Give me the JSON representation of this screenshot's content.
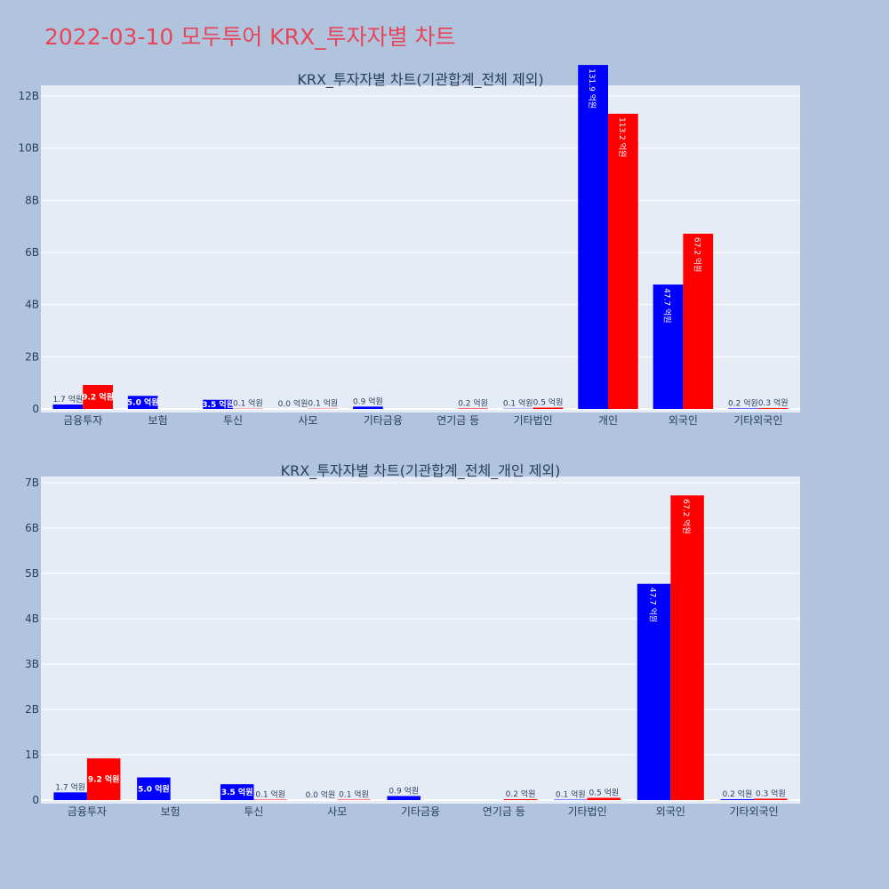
{
  "page_title": "2022-03-10 모두투어 KRX_투자자별 차트",
  "colors": {
    "buy": "#0000ff",
    "sell": "#ff0000",
    "plot_bg": "#e5ecf6",
    "page_bg": "#b0c4de",
    "title": "#e8455a"
  },
  "chart_data": [
    {
      "type": "bar",
      "title": "KRX_투자자별 차트(기관합계_전체 제외)",
      "categories": [
        "금융투자",
        "보험",
        "투신",
        "사모",
        "기타금융",
        "연기금 등",
        "기타법인",
        "개인",
        "외국인",
        "기타외국인"
      ],
      "series": [
        {
          "values": [
            0.17,
            0.5,
            0.35,
            0.0,
            0.09,
            0.0,
            0.01,
            13.19,
            4.77,
            0.02
          ],
          "labels": [
            "1.7 억원",
            "5.0 억원",
            "3.5 억원",
            "0.0 억원",
            "0.9 억원",
            "",
            "0.1 억원",
            "131.9 억원",
            "47.7 억원",
            "0.2 억원"
          ]
        },
        {
          "values": [
            0.92,
            0.0,
            0.01,
            0.01,
            0.0,
            0.02,
            0.05,
            11.32,
            6.72,
            0.03
          ],
          "labels": [
            "9.2 억원",
            "",
            "0.1 억원",
            "0.1 억원",
            "",
            "0.2 억원",
            "0.5 억원",
            "113.2 억원",
            "67.2 억원",
            "0.3 억원"
          ]
        }
      ],
      "yticks": [
        "0",
        "2B",
        "4B",
        "6B",
        "8B",
        "10B",
        "12B"
      ],
      "ylim": [
        0,
        14
      ]
    },
    {
      "type": "bar",
      "title": "KRX_투자자별 차트(기관합계_전체_개인 제외)",
      "categories": [
        "금융투자",
        "보험",
        "투신",
        "사모",
        "기타금융",
        "연기금 등",
        "기타법인",
        "외국인",
        "기타외국인"
      ],
      "series": [
        {
          "values": [
            0.17,
            0.5,
            0.35,
            0.0,
            0.09,
            0.0,
            0.01,
            4.77,
            0.02
          ],
          "labels": [
            "1.7 억원",
            "5.0 억원",
            "3.5 억원",
            "0.0 억원",
            "0.9 억원",
            "",
            "0.1 억원",
            "47.7 억원",
            "0.2 억원"
          ]
        },
        {
          "values": [
            0.92,
            0.0,
            0.01,
            0.01,
            0.0,
            0.02,
            0.05,
            6.72,
            0.03
          ],
          "labels": [
            "9.2 억원",
            "",
            "0.1 억원",
            "0.1 억원",
            "",
            "0.2 억원",
            "0.5 억원",
            "67.2 억원",
            "0.3 억원"
          ]
        }
      ],
      "yticks": [
        "0",
        "1B",
        "2B",
        "3B",
        "4B",
        "5B",
        "6B",
        "7B"
      ],
      "ylim": [
        0,
        7.1
      ]
    }
  ]
}
